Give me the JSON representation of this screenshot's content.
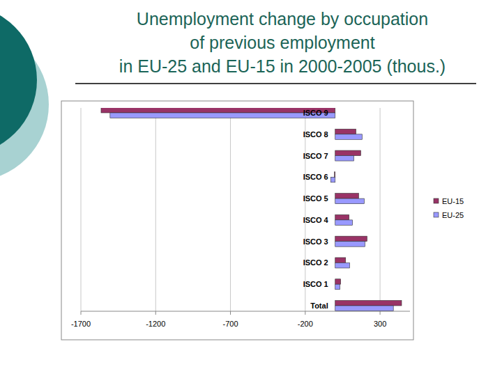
{
  "chart_data": {
    "type": "bar",
    "orientation": "horizontal",
    "title": "Unemployment change by occupation\nof previous employment\nin EU-25 and EU-15 in 2000-2005 (thous.)",
    "categories": [
      "ISCO 9",
      "ISCO 8",
      "ISCO 7",
      "ISCO 6",
      "ISCO 5",
      "ISCO 4",
      "ISCO 3",
      "ISCO 2",
      "ISCO 1",
      "Total"
    ],
    "series": [
      {
        "name": "EU-15",
        "color": "#993366",
        "values": [
          -1565,
          139,
          171,
          -5,
          157,
          93,
          213,
          70,
          37,
          444
        ]
      },
      {
        "name": "EU-25",
        "color": "#9999ff",
        "values": [
          -1505,
          180,
          125,
          -30,
          194,
          116,
          199,
          97,
          32,
          389
        ]
      }
    ],
    "xlim": [
      -1700,
      500
    ],
    "xticks": [
      -1700,
      -1200,
      -700,
      -200,
      300
    ],
    "grid": true,
    "legend": "right"
  }
}
